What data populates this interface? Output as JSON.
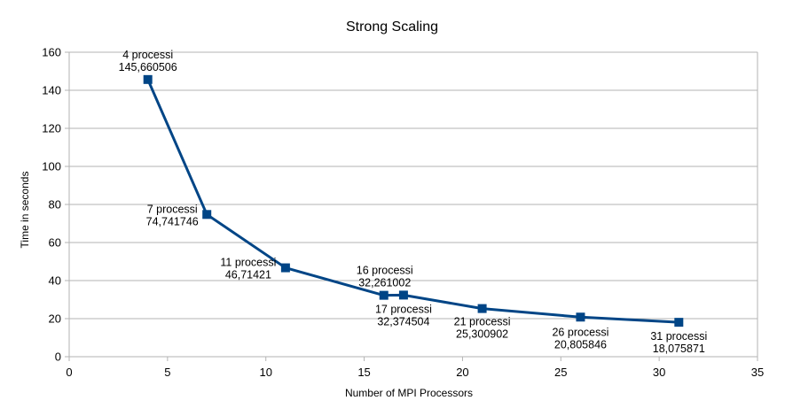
{
  "chart_data": {
    "type": "scatter",
    "title": "Strong Scaling",
    "xlabel": "Number of MPI Processors",
    "ylabel": "Time in seconds",
    "xlim": [
      0,
      35
    ],
    "ylim": [
      0,
      160
    ],
    "xticks": [
      0,
      5,
      10,
      15,
      20,
      25,
      30,
      35
    ],
    "yticks": [
      0,
      20,
      40,
      60,
      80,
      100,
      120,
      140,
      160
    ],
    "grid": true,
    "legend": "none",
    "colors": {
      "series": "#004586",
      "grid": "#b3b3b3",
      "axis": "#b3b3b3"
    },
    "series": [
      {
        "x": [
          4,
          7,
          11,
          16,
          17,
          21,
          26,
          31
        ],
        "y": [
          145.660506,
          74.741746,
          46.71421,
          32.261002,
          32.374504,
          25.300902,
          20.805846,
          18.075871
        ],
        "labels": [
          [
            "4 processi",
            "145,660506"
          ],
          [
            "7 processi",
            "74,741746"
          ],
          [
            "11 processi",
            "46,71421"
          ],
          [
            "16 processi",
            "32,261002"
          ],
          [
            "17 processi",
            "32,374504"
          ],
          [
            "21 processi",
            "25,300902"
          ],
          [
            "26 processi",
            "20,805846"
          ],
          [
            "31 processi",
            "18,075871"
          ]
        ]
      }
    ]
  }
}
